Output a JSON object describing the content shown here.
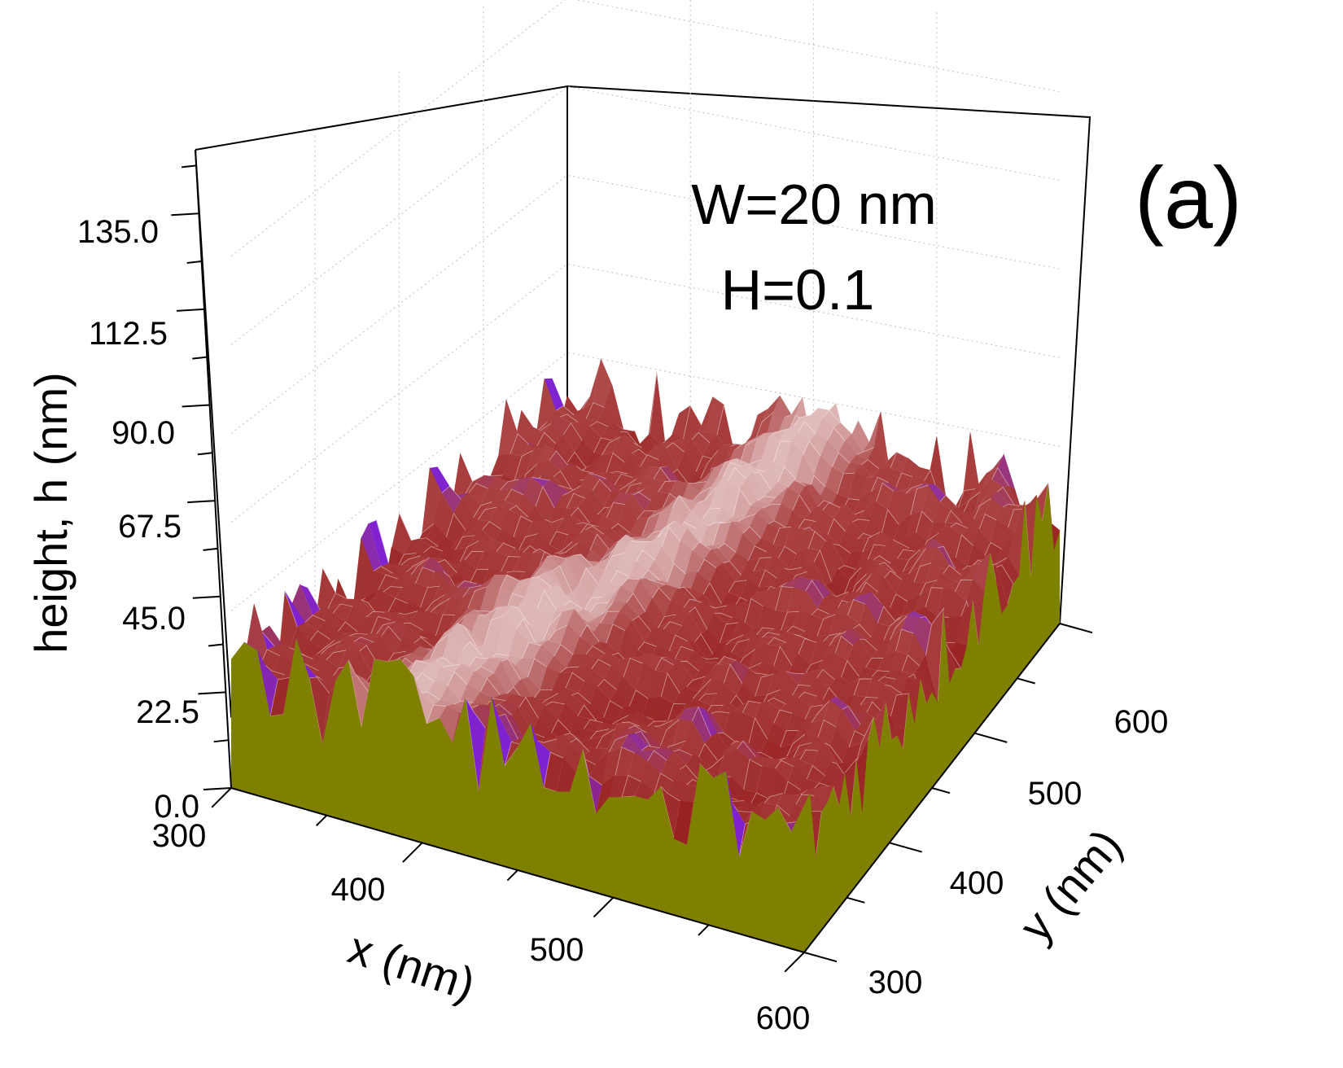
{
  "chart_data": {
    "type": "surface",
    "panel_label": "(a)",
    "annotations": [
      "W=20 nm",
      "H=0.1"
    ],
    "x_axis": {
      "label": "x (nm)",
      "range": [
        300,
        600
      ],
      "ticks": [
        "300",
        "400",
        "500",
        "600"
      ]
    },
    "y_axis": {
      "label": "y (nm)",
      "range": [
        300,
        600
      ],
      "ticks": [
        "300",
        "400",
        "500",
        "600"
      ]
    },
    "z_axis": {
      "label": "height, h (nm)",
      "range": [
        0,
        150
      ],
      "ticks": [
        "0.0",
        "22.5",
        "45.0",
        "67.5",
        "90.0",
        "112.5",
        "135.0"
      ]
    },
    "surface": {
      "description_values": {
        "min_height": 0,
        "typical_height_range": [
          15,
          45
        ],
        "max_height": 45
      },
      "colors": {
        "low": "#8b0a0a",
        "mid": "#c87878",
        "high": "#f2e4e4",
        "peak": "#7b1fe0",
        "side_wall": "#808000",
        "contour": "#ffffff"
      }
    }
  }
}
